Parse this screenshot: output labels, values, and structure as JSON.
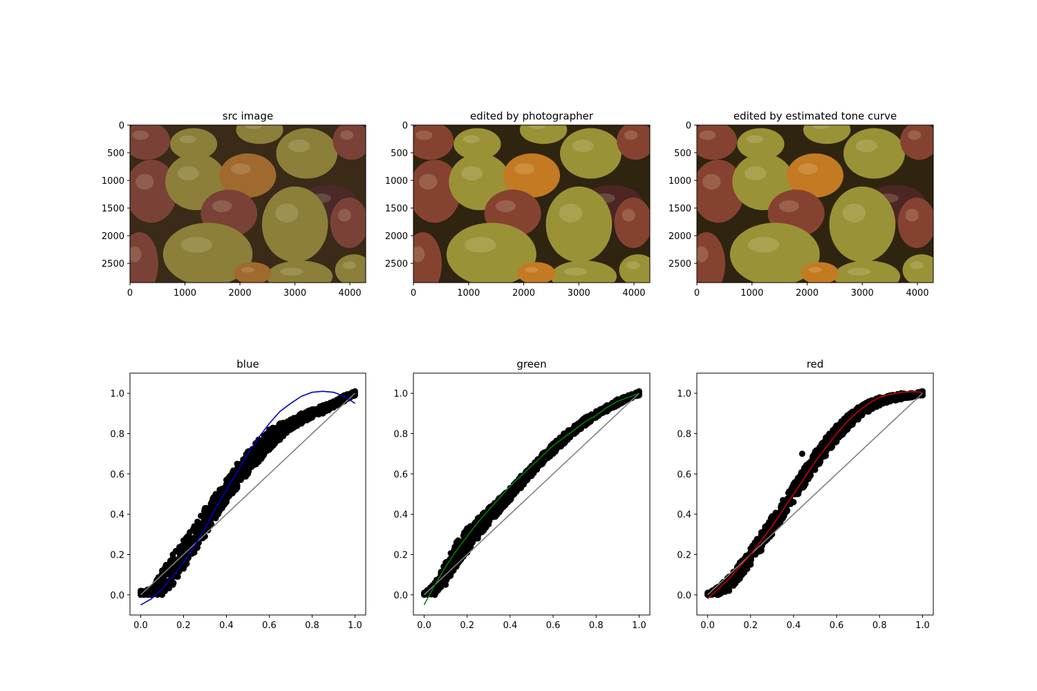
{
  "image_panels": [
    {
      "title": "src image",
      "xticks": [
        "0",
        "1000",
        "2000",
        "3000",
        "4000"
      ],
      "yticks": [
        "0",
        "500",
        "1000",
        "1500",
        "2000",
        "2500"
      ],
      "tone": "src"
    },
    {
      "title": "edited by photographer",
      "xticks": [
        "0",
        "1000",
        "2000",
        "3000",
        "4000"
      ],
      "yticks": [
        "0",
        "500",
        "1000",
        "1500",
        "2000",
        "2500"
      ],
      "tone": "edited"
    },
    {
      "title": "edited by estimated tone curve",
      "xticks": [
        "0",
        "1000",
        "2000",
        "3000",
        "4000"
      ],
      "yticks": [
        "0",
        "500",
        "1000",
        "1500",
        "2000",
        "2500"
      ],
      "tone": "edited"
    }
  ],
  "chart_data": [
    {
      "type": "scatter",
      "title": "blue",
      "xlim": [
        -0.05,
        1.05
      ],
      "ylim": [
        -0.1,
        1.1
      ],
      "xticks": [
        "0.0",
        "0.2",
        "0.4",
        "0.6",
        "0.8",
        "1.0"
      ],
      "yticks": [
        "0.0",
        "0.2",
        "0.4",
        "0.6",
        "0.8",
        "1.0"
      ],
      "grid": false,
      "fit_color": "#0000cc",
      "scatter_color": "#000000",
      "identity_color": "#808080",
      "scatter_band": [
        {
          "x": 0.0,
          "lo": 0.0,
          "hi": 0.02
        },
        {
          "x": 0.05,
          "lo": 0.0,
          "hi": 0.03
        },
        {
          "x": 0.1,
          "lo": 0.0,
          "hi": 0.12
        },
        {
          "x": 0.15,
          "lo": 0.05,
          "hi": 0.2
        },
        {
          "x": 0.2,
          "lo": 0.13,
          "hi": 0.27
        },
        {
          "x": 0.25,
          "lo": 0.21,
          "hi": 0.34
        },
        {
          "x": 0.3,
          "lo": 0.29,
          "hi": 0.43
        },
        {
          "x": 0.35,
          "lo": 0.38,
          "hi": 0.5
        },
        {
          "x": 0.4,
          "lo": 0.46,
          "hi": 0.57
        },
        {
          "x": 0.45,
          "lo": 0.53,
          "hi": 0.65
        },
        {
          "x": 0.5,
          "lo": 0.6,
          "hi": 0.71
        },
        {
          "x": 0.55,
          "lo": 0.66,
          "hi": 0.77
        },
        {
          "x": 0.6,
          "lo": 0.72,
          "hi": 0.82
        },
        {
          "x": 0.65,
          "lo": 0.77,
          "hi": 0.85
        },
        {
          "x": 0.7,
          "lo": 0.82,
          "hi": 0.87
        },
        {
          "x": 0.75,
          "lo": 0.85,
          "hi": 0.9
        },
        {
          "x": 0.8,
          "lo": 0.88,
          "hi": 0.92
        },
        {
          "x": 0.85,
          "lo": 0.9,
          "hi": 0.94
        },
        {
          "x": 0.9,
          "lo": 0.93,
          "hi": 0.96
        },
        {
          "x": 0.95,
          "lo": 0.96,
          "hi": 0.99
        },
        {
          "x": 1.0,
          "lo": 0.99,
          "hi": 1.01
        }
      ],
      "fit": {
        "x": [
          0.0,
          0.05,
          0.1,
          0.15,
          0.2,
          0.25,
          0.3,
          0.35,
          0.4,
          0.45,
          0.5,
          0.55,
          0.6,
          0.65,
          0.7,
          0.75,
          0.8,
          0.85,
          0.9,
          0.95,
          1.0
        ],
        "y": [
          -0.05,
          -0.02,
          0.03,
          0.09,
          0.16,
          0.24,
          0.33,
          0.43,
          0.52,
          0.61,
          0.7,
          0.78,
          0.85,
          0.91,
          0.95,
          0.985,
          1.005,
          1.01,
          1.005,
          0.985,
          0.95
        ]
      },
      "outliers": []
    },
    {
      "type": "scatter",
      "title": "green",
      "xlim": [
        -0.05,
        1.05
      ],
      "ylim": [
        -0.1,
        1.1
      ],
      "xticks": [
        "0.0",
        "0.2",
        "0.4",
        "0.6",
        "0.8",
        "1.0"
      ],
      "yticks": [
        "0.0",
        "0.2",
        "0.4",
        "0.6",
        "0.8",
        "1.0"
      ],
      "grid": false,
      "fit_color": "#008000",
      "scatter_color": "#000000",
      "identity_color": "#808080",
      "scatter_band": [
        {
          "x": 0.0,
          "lo": 0.0,
          "hi": 0.01
        },
        {
          "x": 0.05,
          "lo": 0.0,
          "hi": 0.06
        },
        {
          "x": 0.1,
          "lo": 0.05,
          "hi": 0.16
        },
        {
          "x": 0.15,
          "lo": 0.14,
          "hi": 0.26
        },
        {
          "x": 0.2,
          "lo": 0.21,
          "hi": 0.33
        },
        {
          "x": 0.25,
          "lo": 0.28,
          "hi": 0.38
        },
        {
          "x": 0.3,
          "lo": 0.35,
          "hi": 0.43
        },
        {
          "x": 0.35,
          "lo": 0.41,
          "hi": 0.48
        },
        {
          "x": 0.4,
          "lo": 0.47,
          "hi": 0.53
        },
        {
          "x": 0.45,
          "lo": 0.53,
          "hi": 0.59
        },
        {
          "x": 0.5,
          "lo": 0.59,
          "hi": 0.64
        },
        {
          "x": 0.55,
          "lo": 0.65,
          "hi": 0.7
        },
        {
          "x": 0.6,
          "lo": 0.7,
          "hi": 0.75
        },
        {
          "x": 0.65,
          "lo": 0.75,
          "hi": 0.8
        },
        {
          "x": 0.7,
          "lo": 0.8,
          "hi": 0.84
        },
        {
          "x": 0.75,
          "lo": 0.84,
          "hi": 0.88
        },
        {
          "x": 0.8,
          "lo": 0.88,
          "hi": 0.91
        },
        {
          "x": 0.85,
          "lo": 0.91,
          "hi": 0.94
        },
        {
          "x": 0.9,
          "lo": 0.94,
          "hi": 0.97
        },
        {
          "x": 0.95,
          "lo": 0.97,
          "hi": 0.99
        },
        {
          "x": 1.0,
          "lo": 0.99,
          "hi": 1.01
        }
      ],
      "fit": {
        "x": [
          0.0,
          0.05,
          0.1,
          0.15,
          0.2,
          0.25,
          0.3,
          0.35,
          0.4,
          0.45,
          0.5,
          0.55,
          0.6,
          0.65,
          0.7,
          0.75,
          0.8,
          0.85,
          0.9,
          0.95,
          1.0
        ],
        "y": [
          -0.05,
          0.05,
          0.14,
          0.22,
          0.29,
          0.36,
          0.42,
          0.48,
          0.54,
          0.59,
          0.64,
          0.69,
          0.74,
          0.78,
          0.82,
          0.86,
          0.89,
          0.93,
          0.96,
          0.98,
          1.0
        ]
      },
      "outliers": []
    },
    {
      "type": "scatter",
      "title": "red",
      "xlim": [
        -0.05,
        1.05
      ],
      "ylim": [
        -0.1,
        1.1
      ],
      "xticks": [
        "0.0",
        "0.2",
        "0.4",
        "0.6",
        "0.8",
        "1.0"
      ],
      "yticks": [
        "0.0",
        "0.2",
        "0.4",
        "0.6",
        "0.8",
        "1.0"
      ],
      "grid": false,
      "fit_color": "#cc0000",
      "scatter_color": "#000000",
      "identity_color": "#808080",
      "scatter_band": [
        {
          "x": 0.0,
          "lo": 0.0,
          "hi": 0.01
        },
        {
          "x": 0.05,
          "lo": 0.0,
          "hi": 0.04
        },
        {
          "x": 0.1,
          "lo": 0.02,
          "hi": 0.09
        },
        {
          "x": 0.15,
          "lo": 0.08,
          "hi": 0.16
        },
        {
          "x": 0.2,
          "lo": 0.15,
          "hi": 0.23
        },
        {
          "x": 0.25,
          "lo": 0.22,
          "hi": 0.31
        },
        {
          "x": 0.3,
          "lo": 0.3,
          "hi": 0.39
        },
        {
          "x": 0.35,
          "lo": 0.38,
          "hi": 0.47
        },
        {
          "x": 0.4,
          "lo": 0.46,
          "hi": 0.55
        },
        {
          "x": 0.45,
          "lo": 0.54,
          "hi": 0.63
        },
        {
          "x": 0.5,
          "lo": 0.62,
          "hi": 0.71
        },
        {
          "x": 0.55,
          "lo": 0.69,
          "hi": 0.78
        },
        {
          "x": 0.6,
          "lo": 0.76,
          "hi": 0.84
        },
        {
          "x": 0.65,
          "lo": 0.82,
          "hi": 0.89
        },
        {
          "x": 0.7,
          "lo": 0.87,
          "hi": 0.93
        },
        {
          "x": 0.75,
          "lo": 0.91,
          "hi": 0.96
        },
        {
          "x": 0.8,
          "lo": 0.94,
          "hi": 0.98
        },
        {
          "x": 0.85,
          "lo": 0.96,
          "hi": 0.99
        },
        {
          "x": 0.9,
          "lo": 0.97,
          "hi": 1.0
        },
        {
          "x": 0.95,
          "lo": 0.98,
          "hi": 1.0
        },
        {
          "x": 1.0,
          "lo": 0.99,
          "hi": 1.01
        }
      ],
      "fit": {
        "x": [
          0.0,
          0.05,
          0.1,
          0.15,
          0.2,
          0.25,
          0.3,
          0.35,
          0.4,
          0.45,
          0.5,
          0.55,
          0.6,
          0.65,
          0.7,
          0.75,
          0.8,
          0.85,
          0.9,
          0.95,
          1.0
        ],
        "y": [
          -0.02,
          0.03,
          0.08,
          0.14,
          0.2,
          0.27,
          0.34,
          0.42,
          0.5,
          0.58,
          0.66,
          0.73,
          0.8,
          0.86,
          0.91,
          0.95,
          0.98,
          0.995,
          1.005,
          1.008,
          1.005
        ]
      },
      "outliers": [
        {
          "x": 0.44,
          "y": 0.7
        }
      ]
    }
  ]
}
